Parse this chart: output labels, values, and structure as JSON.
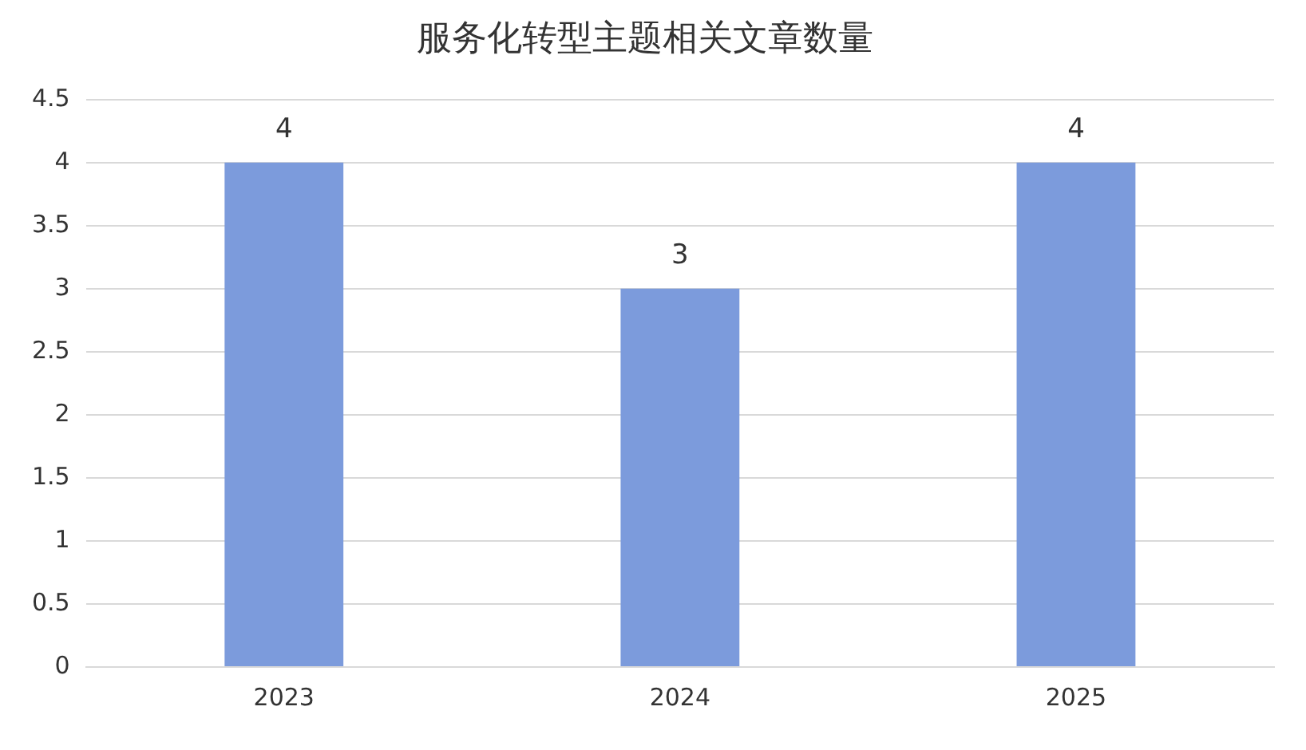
{
  "chart_data": {
    "type": "bar",
    "title": "服务化转型主题相关文章数量",
    "categories": [
      "2023",
      "2024",
      "2025"
    ],
    "values": [
      4,
      3,
      4
    ],
    "color": "#7c9bdc",
    "ylim": [
      0,
      4.5
    ],
    "yticks": [
      0,
      0.5,
      1,
      1.5,
      2,
      2.5,
      3,
      3.5,
      4,
      4.5
    ],
    "grid": "y",
    "data_labels": true,
    "legend": false
  }
}
